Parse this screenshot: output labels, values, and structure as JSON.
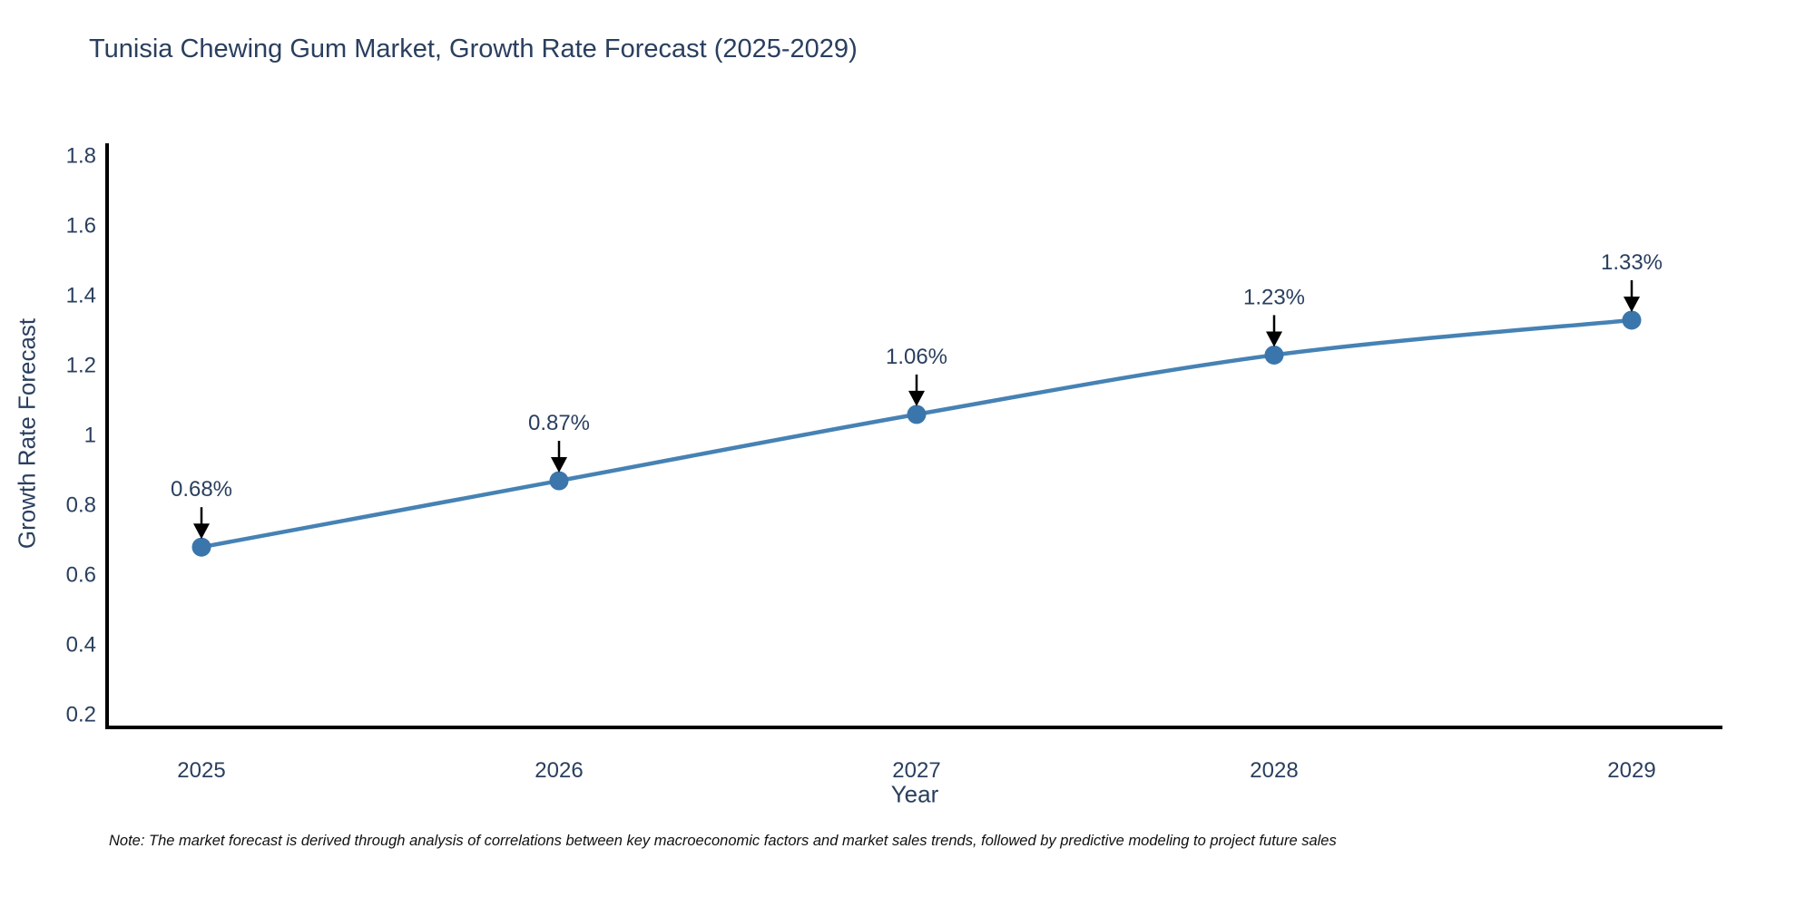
{
  "title": "Tunisia Chewing Gum Market, Growth Rate Forecast (2025-2029)",
  "chart_data": {
    "type": "line",
    "title": "Tunisia Chewing Gum Market, Growth Rate Forecast (2025-2029)",
    "x": [
      2025,
      2026,
      2027,
      2028,
      2029
    ],
    "series": [
      {
        "name": "Growth Rate Forecast",
        "values": [
          0.68,
          0.87,
          1.06,
          1.23,
          1.33
        ]
      }
    ],
    "point_labels": [
      "0.68%",
      "0.87%",
      "1.06%",
      "1.23%",
      "1.33%"
    ],
    "xlabel": "Year",
    "ylabel": "Growth Rate Forecast",
    "xtick_labels": [
      "2025",
      "2026",
      "2027",
      "2028",
      "2029"
    ],
    "ytick_values": [
      0.2,
      0.4,
      0.6,
      0.8,
      1,
      1.2,
      1.4,
      1.6,
      1.8
    ],
    "ytick_labels": [
      "0.2",
      "0.4",
      "0.6",
      "0.8",
      "1",
      "1.2",
      "1.4",
      "1.6",
      "1.8"
    ],
    "ylim": [
      0.2,
      1.8
    ],
    "grid": false,
    "legend_position": "none",
    "line_color": "#4682b4",
    "marker_color": "#3a76ac",
    "axis_color": "#000000",
    "tick_color": "#2a3f5f",
    "annotation_color": "#2a3f5f",
    "arrow_color": "#000000"
  },
  "note": "Note: The market forecast is derived through analysis of correlations between key macroeconomic factors and market sales trends, followed by predictive modeling to project future sales"
}
